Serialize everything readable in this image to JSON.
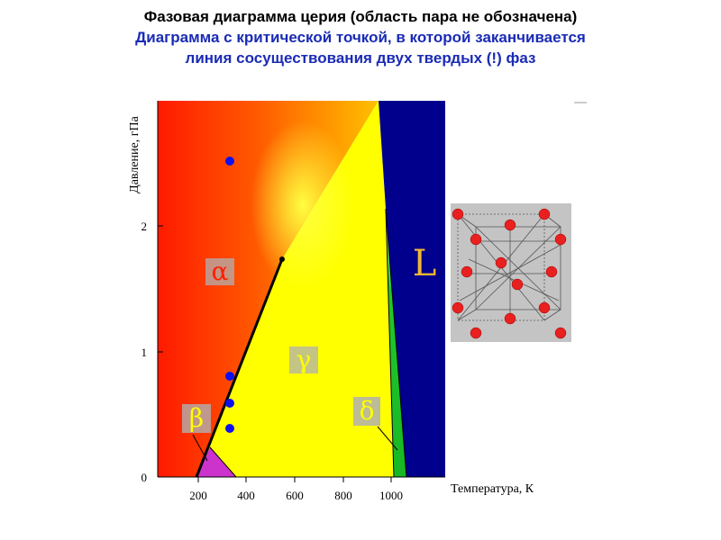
{
  "header": {
    "title_line1": "Фазовая диаграмма церия (область пара не обозначена)",
    "title_line2": "Диаграмма с критической точкой, в которой заканчивается",
    "title_line3": "линия сосуществования двух твердых (!) фаз"
  },
  "chart_data": {
    "type": "diagram",
    "xlabel": "Температура, К",
    "ylabel": "Давление, гПа",
    "x_ticks": [
      "200",
      "400",
      "600",
      "800",
      "1000"
    ],
    "y_ticks": [
      "0",
      "1",
      "2"
    ],
    "xlim": [
      50,
      1130
    ],
    "ylim": [
      0,
      3.0
    ],
    "phases": [
      {
        "label": "α",
        "color": "#b0b0b0"
      },
      {
        "label": "β",
        "color": "#b0b0b0"
      },
      {
        "label": "γ",
        "color": "#b0b0b0"
      },
      {
        "label": "δ",
        "color": "#b0b0b0"
      },
      {
        "label": "L",
        "color": "#f2b732"
      }
    ],
    "critical_point": {
      "x": 545,
      "y": 1.72
    },
    "alpha_gamma_boundary": [
      [
        195,
        0
      ],
      [
        545,
        1.72
      ]
    ],
    "blue_points": [
      {
        "x": 330,
        "y": 2.5
      },
      {
        "x": 330,
        "y": 0.8
      },
      {
        "x": 330,
        "y": 0.6
      },
      {
        "x": 330,
        "y": 0.4
      }
    ],
    "colors": {
      "alpha": "#ff1e00",
      "gamma": "#ffff00",
      "delta": "#2ec832",
      "liquid": "#00008c",
      "beta": "#cc33cc",
      "points": "#1010ee"
    }
  }
}
